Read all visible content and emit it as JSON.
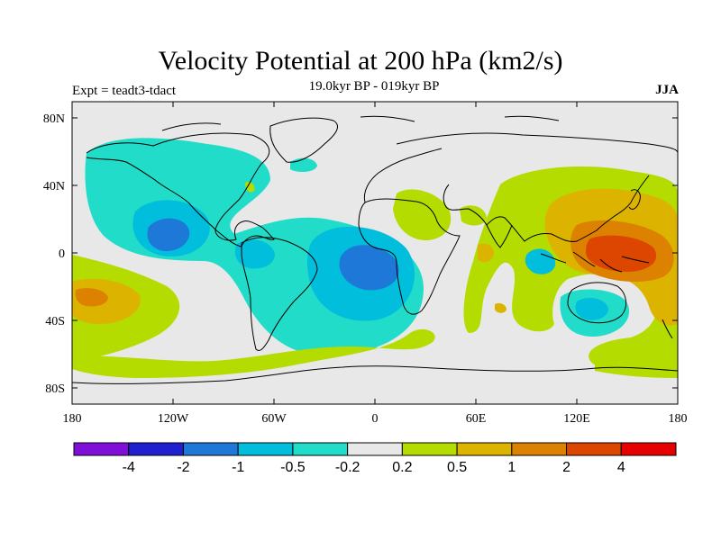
{
  "title": "Velocity Potential at 200 hPa (km2/s)",
  "subtitle": "19.0kyr BP - 019kyr BP",
  "expt_label": "Expt = teadt3-tdact",
  "season": "JJA",
  "y_ticks": [
    "80N",
    "40N",
    "0",
    "40S",
    "80S"
  ],
  "x_ticks": [
    "180",
    "120W",
    "60W",
    "0",
    "60E",
    "120E",
    "180"
  ],
  "colorbar": {
    "colors": [
      "#7f0fd8",
      "#2020d0",
      "#1e78d8",
      "#00bedc",
      "#20dcc8",
      "#e8e8e8",
      "#b4dc00",
      "#dcb400",
      "#dc8200",
      "#dc4600",
      "#e60000"
    ],
    "labels": [
      "-4",
      "-2",
      "-1",
      "-0.5",
      "-0.2",
      "0.2",
      "0.5",
      "1",
      "2",
      "4"
    ]
  },
  "map_colors": {
    "ocean": "#e8e8e8",
    "coast": "#000000"
  }
}
